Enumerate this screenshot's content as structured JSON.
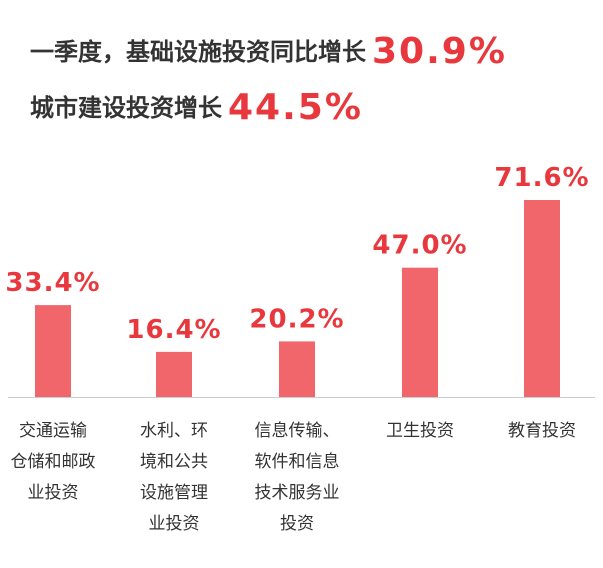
{
  "headline": {
    "line1_text": "一季度，基础设施投资同比增长",
    "line1_value": "30.9%",
    "line2_text": "城市建设投资增长",
    "line2_value": "44.5%"
  },
  "colors": {
    "bar": "#f0666a",
    "accent": "#e8383d",
    "text": "#333333",
    "axis": "#cccccc"
  },
  "chart_data": {
    "type": "bar",
    "categories": [
      [
        "交通运输",
        "仓储和邮政",
        "业投资"
      ],
      [
        "水利、环",
        "境和公共",
        "设施管理",
        "业投资"
      ],
      [
        "信息传输、",
        "软件和信息",
        "技术服务业",
        "投资"
      ],
      [
        "卫生投资"
      ],
      [
        "教育投资"
      ]
    ],
    "values": [
      33.4,
      16.4,
      20.2,
      47.0,
      71.6
    ],
    "value_labels": [
      "33.4%",
      "16.4%",
      "20.2%",
      "47.0%",
      "71.6%"
    ],
    "ylim": [
      0,
      71.6
    ],
    "grid": false,
    "legend": "none"
  }
}
